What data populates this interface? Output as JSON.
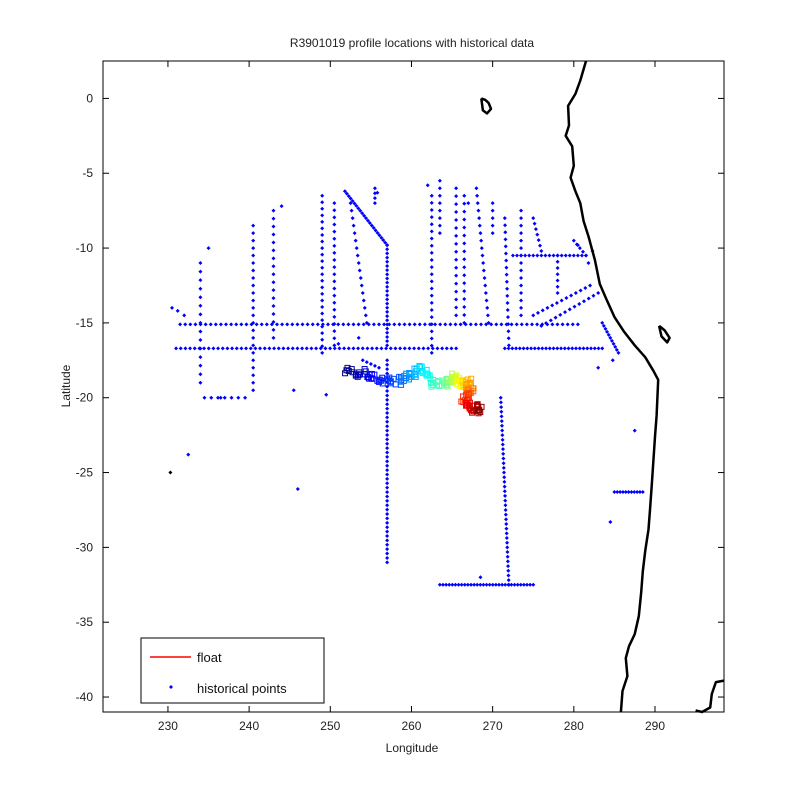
{
  "chart_data": {
    "type": "scatter",
    "title": "R3901019 profile locations with historical data",
    "xlabel": "Longitude",
    "ylabel": "Latitude",
    "xlim": [
      222,
      298.5
    ],
    "ylim": [
      -41,
      2.5
    ],
    "xticks": [
      230,
      240,
      250,
      260,
      270,
      280,
      290
    ],
    "yticks": [
      0,
      -5,
      -10,
      -15,
      -20,
      -25,
      -30,
      -35,
      -40
    ],
    "xtick_labels": [
      "230",
      "240",
      "250",
      "260",
      "270",
      "280",
      "290"
    ],
    "ytick_labels": [
      "0",
      "-5",
      "-10",
      "-15",
      "-20",
      "-25",
      "-30",
      "-35",
      "-40"
    ],
    "grid": false,
    "legend": {
      "placement": "bottom-left",
      "entries": [
        {
          "label": "float",
          "style": "line",
          "color": "#ff0000"
        },
        {
          "label": "historical points",
          "style": "marker",
          "color": "#0000ff"
        }
      ]
    },
    "coastline": {
      "color": "#000000",
      "mainland": [
        [
          281.5,
          2.5
        ],
        [
          280.8,
          1.2
        ],
        [
          280.2,
          0.3
        ],
        [
          279.3,
          -0.5
        ],
        [
          279.4,
          -1.8
        ],
        [
          279.0,
          -2.5
        ],
        [
          279.8,
          -3.2
        ],
        [
          280.0,
          -4.5
        ],
        [
          279.6,
          -5.3
        ],
        [
          280.2,
          -6.2
        ],
        [
          280.8,
          -7.0
        ],
        [
          281.2,
          -8.2
        ],
        [
          281.8,
          -9.2
        ],
        [
          282.6,
          -10.8
        ],
        [
          283.2,
          -12.4
        ],
        [
          284.0,
          -13.4
        ],
        [
          285.0,
          -14.6
        ],
        [
          286.2,
          -15.6
        ],
        [
          287.5,
          -16.5
        ],
        [
          288.8,
          -17.3
        ],
        [
          289.8,
          -18.2
        ],
        [
          290.4,
          -18.8
        ],
        [
          290.3,
          -20.0
        ],
        [
          290.2,
          -21.2
        ],
        [
          290.0,
          -22.6
        ],
        [
          289.8,
          -24.2
        ],
        [
          289.6,
          -25.8
        ],
        [
          289.4,
          -27.4
        ],
        [
          289.2,
          -28.8
        ],
        [
          288.8,
          -30.2
        ],
        [
          288.5,
          -31.6
        ],
        [
          288.3,
          -33.0
        ],
        [
          288.0,
          -34.6
        ],
        [
          287.5,
          -35.8
        ],
        [
          286.8,
          -36.6
        ],
        [
          286.4,
          -37.4
        ],
        [
          286.6,
          -38.6
        ],
        [
          286.0,
          -39.6
        ],
        [
          285.8,
          -41.0
        ]
      ],
      "island_galapagos": [
        [
          268.6,
          0.0
        ],
        [
          269.1,
          -0.1
        ],
        [
          269.5,
          -0.3
        ],
        [
          269.8,
          -0.7
        ],
        [
          269.3,
          -1.0
        ],
        [
          268.8,
          -0.8
        ],
        [
          268.7,
          -0.4
        ],
        [
          268.6,
          0.0
        ]
      ],
      "island_titicaca": [
        [
          290.5,
          -15.2
        ],
        [
          291.2,
          -15.5
        ],
        [
          291.8,
          -16.0
        ],
        [
          291.5,
          -16.3
        ],
        [
          290.8,
          -15.9
        ],
        [
          290.5,
          -15.2
        ]
      ],
      "southeast_fragment": [
        [
          295.0,
          -40.9
        ],
        [
          295.8,
          -41.0
        ],
        [
          296.8,
          -40.7
        ],
        [
          297.0,
          -39.8
        ],
        [
          297.5,
          -39.0
        ],
        [
          298.5,
          -38.9
        ]
      ]
    },
    "series": [
      {
        "name": "historical points",
        "color": "#0000ff",
        "marker": "dot",
        "segments": [
          {
            "from": [
              231,
              -16.7
            ],
            "to": [
              265.5,
              -16.7
            ],
            "n": 60
          },
          {
            "from": [
              271.5,
              -16.7
            ],
            "to": [
              283.5,
              -16.7
            ],
            "n": 26
          },
          {
            "from": [
              231.5,
              -15.1
            ],
            "to": [
              280.5,
              -15.1
            ],
            "n": 78
          },
          {
            "from": [
              257.0,
              -17.5
            ],
            "to": [
              257.0,
              -31.0
            ],
            "n": 46
          },
          {
            "from": [
              271.0,
              -20.0
            ],
            "to": [
              272.0,
              -32.5
            ],
            "n": 40
          },
          {
            "from": [
              263.5,
              -32.5
            ],
            "to": [
              275.0,
              -32.5
            ],
            "n": 30
          },
          {
            "from": [
              251.8,
              -6.2
            ],
            "to": [
              257.0,
              -9.8
            ],
            "n": 22
          },
          {
            "from": [
              257.0,
              -9.8
            ],
            "to": [
              257.0,
              -16.5
            ],
            "n": 24
          },
          {
            "from": [
              234.0,
              -11.0
            ],
            "to": [
              234.0,
              -19.0
            ],
            "n": 14
          },
          {
            "from": [
              240.5,
              -8.5
            ],
            "to": [
              240.5,
              -19.5
            ],
            "n": 22
          },
          {
            "from": [
              243.0,
              -7.5
            ],
            "to": [
              243.0,
              -16.0
            ],
            "n": 16
          },
          {
            "from": [
              249.0,
              -6.5
            ],
            "to": [
              249.0,
              -17.0
            ],
            "n": 24
          },
          {
            "from": [
              250.5,
              -7.0
            ],
            "to": [
              250.5,
              -16.5
            ],
            "n": 20
          },
          {
            "from": [
              252.5,
              -7.0
            ],
            "to": [
              254.5,
              -15.0
            ],
            "n": 16
          },
          {
            "from": [
              255.5,
              -6.0
            ],
            "to": [
              255.5,
              -7.0
            ],
            "n": 3
          },
          {
            "from": [
              262.5,
              -6.5
            ],
            "to": [
              262.5,
              -17.0
            ],
            "n": 22
          },
          {
            "from": [
              263.5,
              -5.5
            ],
            "to": [
              263.5,
              -9.0
            ],
            "n": 7
          },
          {
            "from": [
              265.5,
              -6.0
            ],
            "to": [
              265.5,
              -14.5
            ],
            "n": 16
          },
          {
            "from": [
              266.5,
              -6.5
            ],
            "to": [
              266.5,
              -15.0
            ],
            "n": 16
          },
          {
            "from": [
              268.0,
              -6.0
            ],
            "to": [
              269.5,
              -15.0
            ],
            "n": 18
          },
          {
            "from": [
              270.0,
              -7.0
            ],
            "to": [
              270.0,
              -9.0
            ],
            "n": 4
          },
          {
            "from": [
              271.5,
              -8.0
            ],
            "to": [
              272.0,
              -16.5
            ],
            "n": 18
          },
          {
            "from": [
              273.5,
              -7.5
            ],
            "to": [
              273.5,
              -14.5
            ],
            "n": 14
          },
          {
            "from": [
              275.0,
              -8.0
            ],
            "to": [
              276.0,
              -10.2
            ],
            "n": 6
          },
          {
            "from": [
              272.5,
              -10.5
            ],
            "to": [
              281.5,
              -10.5
            ],
            "n": 18
          },
          {
            "from": [
              280.0,
              -9.5
            ],
            "to": [
              281.5,
              -10.5
            ],
            "n": 4
          },
          {
            "from": [
              278.0,
              -10.5
            ],
            "to": [
              278.0,
              -13.0
            ],
            "n": 6
          },
          {
            "from": [
              275.0,
              -14.5
            ],
            "to": [
              282.0,
              -12.5
            ],
            "n": 12
          },
          {
            "from": [
              276.0,
              -15.2
            ],
            "to": [
              283.0,
              -13.0
            ],
            "n": 12
          },
          {
            "from": [
              283.5,
              -15.0
            ],
            "to": [
              285.5,
              -17.0
            ],
            "n": 10
          },
          {
            "from": [
              285.0,
              -26.3
            ],
            "to": [
              288.5,
              -26.3
            ],
            "n": 10
          },
          {
            "from": [
              234.5,
              -20.0
            ],
            "to": [
              239.5,
              -20.0
            ],
            "n": 6
          },
          {
            "from": [
              254.0,
              -17.5
            ],
            "to": [
              256.0,
              -18.0
            ],
            "n": 4
          }
        ],
        "points": [
          [
            230.5,
            -14.0
          ],
          [
            231.2,
            -14.2
          ],
          [
            232.0,
            -14.5
          ],
          [
            235.0,
            -10.0
          ],
          [
            236.5,
            -20.0
          ],
          [
            232.5,
            -23.8
          ],
          [
            246.0,
            -26.1
          ],
          [
            244.0,
            -7.2
          ],
          [
            284.5,
            -28.3
          ],
          [
            287.5,
            -22.2
          ],
          [
            268.5,
            -32.0
          ],
          [
            255.8,
            -6.3
          ],
          [
            262.0,
            -5.8
          ],
          [
            267.0,
            -7.0
          ],
          [
            280.5,
            -9.8
          ],
          [
            281.8,
            -11.0
          ],
          [
            282.3,
            -10.2
          ],
          [
            283.0,
            -18.0
          ],
          [
            284.8,
            -17.5
          ],
          [
            245.5,
            -19.5
          ],
          [
            249.5,
            -19.8
          ],
          [
            251.0,
            -16.4
          ],
          [
            253.5,
            -16.0
          ]
        ]
      },
      {
        "name": "float",
        "color": "#ff0000",
        "marker": "profile",
        "colormap": "jet",
        "track": [
          [
            252.0,
            -18.2
          ],
          [
            253.5,
            -18.3
          ],
          [
            255.0,
            -18.6
          ],
          [
            256.5,
            -18.8
          ],
          [
            258.0,
            -18.9
          ],
          [
            259.5,
            -18.8
          ],
          [
            260.5,
            -18.3
          ],
          [
            261.5,
            -17.8
          ],
          [
            262.5,
            -18.9
          ],
          [
            263.5,
            -19.2
          ],
          [
            264.5,
            -19.0
          ],
          [
            265.2,
            -18.6
          ],
          [
            265.8,
            -18.8
          ],
          [
            266.4,
            -19.0
          ],
          [
            267.0,
            -19.0
          ],
          [
            267.3,
            -19.5
          ],
          [
            267.0,
            -19.9
          ],
          [
            266.5,
            -20.2
          ],
          [
            267.3,
            -20.5
          ],
          [
            268.0,
            -20.8
          ],
          [
            268.7,
            -20.7
          ]
        ]
      }
    ]
  },
  "extra_markers": [
    {
      "lon": 230.3,
      "lat": -25.0,
      "color": "#000000"
    }
  ]
}
